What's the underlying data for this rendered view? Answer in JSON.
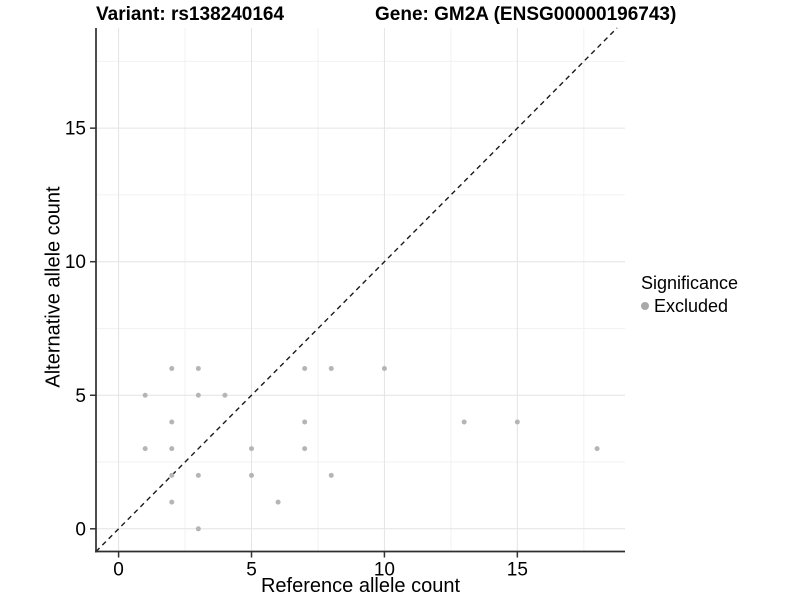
{
  "header": {
    "title_left": "Variant: rs138240164",
    "title_right": "Gene: GM2A (ENSG00000196743)"
  },
  "legend": {
    "title": "Significance",
    "items": [
      {
        "label": "Excluded"
      }
    ]
  },
  "colors": {
    "background": "#ffffff",
    "point": "#b5b5b5",
    "legend_marker": "#a9a9a9",
    "grid_major": "#e4e4e4",
    "grid_minor": "#f2f2f2",
    "axis_line": "#2f2f2f",
    "tick": "#333333",
    "text": "#000000",
    "identity_line": "#1a1a1a"
  },
  "chart_data": {
    "type": "scatter",
    "xlabel": "Reference allele count",
    "ylabel": "Alternative allele count",
    "x_ticks": [
      0,
      5,
      10,
      15
    ],
    "y_ticks": [
      0,
      5,
      10,
      15
    ],
    "x_minor_ticks": [
      2.5,
      7.5,
      12.5,
      17.5
    ],
    "y_minor_ticks": [
      2.5,
      7.5,
      12.5,
      17.5
    ],
    "xlim": [
      -0.85,
      19.05
    ],
    "ylim": [
      -0.85,
      18.75
    ],
    "grid": true,
    "legend_position": "right",
    "identity_line": {
      "style": "dashed",
      "equation": "y = x",
      "from": [
        -0.85,
        -0.85
      ],
      "to": [
        18.75,
        18.75
      ]
    },
    "series": [
      {
        "name": "Excluded",
        "color": "#b5b5b5",
        "points": [
          [
            1,
            3
          ],
          [
            1,
            5
          ],
          [
            2,
            1
          ],
          [
            2,
            2
          ],
          [
            2,
            3
          ],
          [
            2,
            4
          ],
          [
            2,
            6
          ],
          [
            3,
            0
          ],
          [
            3,
            2
          ],
          [
            3,
            5
          ],
          [
            3,
            6
          ],
          [
            4,
            5
          ],
          [
            5,
            2
          ],
          [
            5,
            3
          ],
          [
            6,
            1
          ],
          [
            7,
            3
          ],
          [
            7,
            4
          ],
          [
            7,
            6
          ],
          [
            8,
            2
          ],
          [
            8,
            6
          ],
          [
            10,
            6
          ],
          [
            13,
            4
          ],
          [
            15,
            4
          ],
          [
            18,
            3
          ]
        ]
      }
    ]
  }
}
